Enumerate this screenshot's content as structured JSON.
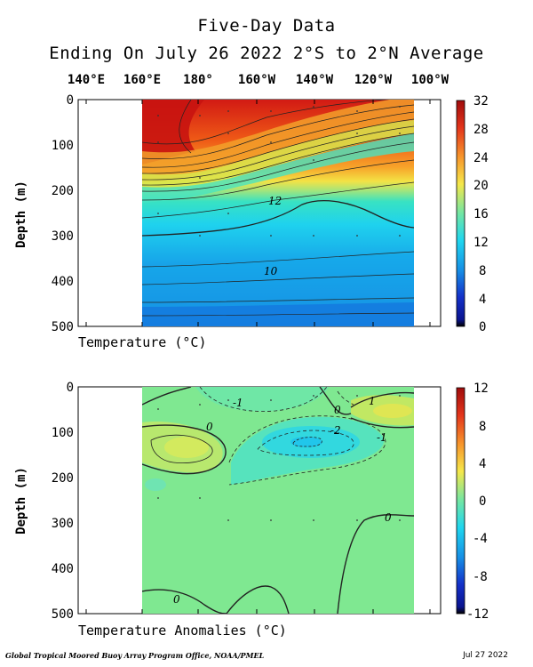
{
  "title_line1": "Five-Day Data",
  "title_line2": "Ending On July 26 2022  2°S to 2°N Average",
  "longitudes": [
    "140°E",
    "160°E",
    "180°",
    "160°W",
    "140°W",
    "120°W",
    "100°W"
  ],
  "footer_left": "Global Tropical Moored Buoy Array Program Office, NOAA/PMEL",
  "footer_right": "Jul 27 2022",
  "chart_data": [
    {
      "type": "heatmap",
      "name": "Temperature",
      "xlabel": "Temperature  (°C)",
      "ylabel": "Depth (m)",
      "x_categories": [
        "140°E",
        "160°E",
        "180°",
        "160°W",
        "140°W",
        "120°W",
        "100°W"
      ],
      "y_ticks": [
        0,
        100,
        200,
        300,
        400,
        500
      ],
      "ylim": [
        500,
        0
      ],
      "colorbar_ticks": [
        32,
        28,
        24,
        20,
        16,
        12,
        8,
        4,
        0
      ],
      "colorbar_range": [
        0,
        32
      ],
      "contour_labels": [
        {
          "text": "12",
          "lon": "160°W+",
          "depth": 225
        },
        {
          "text": "10",
          "lon": "160°W+",
          "depth": 380
        }
      ],
      "isotherm_depths_20C": [
        {
          "lon": "160°E",
          "depth": 195
        },
        {
          "lon": "180°",
          "depth": 185
        },
        {
          "lon": "160°W",
          "depth": 150
        },
        {
          "lon": "140°W",
          "depth": 125
        },
        {
          "lon": "120°W",
          "depth": 95
        },
        {
          "lon": "100°W",
          "depth": 65
        }
      ]
    },
    {
      "type": "heatmap",
      "name": "Temperature Anomalies",
      "xlabel": "Temperature Anomalies (°C)",
      "ylabel": "Depth (m)",
      "x_categories": [
        "140°E",
        "160°E",
        "180°",
        "160°W",
        "140°W",
        "120°W",
        "100°W"
      ],
      "y_ticks": [
        0,
        100,
        200,
        300,
        400,
        500
      ],
      "ylim": [
        500,
        0
      ],
      "colorbar_ticks": [
        12,
        8,
        4,
        0,
        -4,
        -8,
        -12
      ],
      "colorbar_range": [
        -12,
        12
      ],
      "contour_labels": [
        {
          "text": "-1",
          "depth": 35
        },
        {
          "text": "0",
          "depth": 85
        },
        {
          "text": "0",
          "depth": 50
        },
        {
          "text": "1",
          "depth": 30
        },
        {
          "text": "-2",
          "depth": 95
        },
        {
          "text": "-1",
          "depth": 110
        },
        {
          "text": "0",
          "depth": 290
        },
        {
          "text": "0",
          "depth": 475
        }
      ]
    }
  ]
}
